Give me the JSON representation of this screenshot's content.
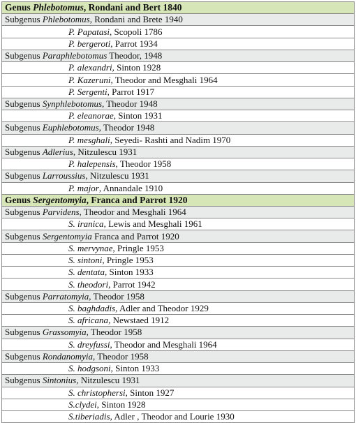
{
  "rows": [
    {
      "type": "genus",
      "prefix": "Genus ",
      "name": "Phlebotomus",
      "author": ", Rondani and Bert 1840"
    },
    {
      "type": "subgenus",
      "prefix": "Subgenus ",
      "name": "Phlebotomus",
      "author": ", Rondani and Brete 1940"
    },
    {
      "type": "species",
      "prefix": "",
      "name": "P. Papatasi",
      "author": ", Scopoli 1786"
    },
    {
      "type": "species",
      "prefix": "",
      "name": "P. bergeroti",
      "author": ", Parrot 1934"
    },
    {
      "type": "subgenus",
      "prefix": "Subgenus ",
      "name": "Paraphlebotomus",
      "author": " Theodor, 1948"
    },
    {
      "type": "species",
      "prefix": "",
      "name": "P. alexandri",
      "author": ", Sinton 1928"
    },
    {
      "type": "species",
      "prefix": "",
      "name": "P. Kazeruni",
      "author": ", Theodor and Mesghali  1964"
    },
    {
      "type": "species",
      "prefix": "",
      "name": "P. Sergenti",
      "author": ", Parrot 1917"
    },
    {
      "type": "subgenus",
      "prefix": "Subgenus ",
      "name": "Synphlebotomus",
      "author": ", Theodor 1948"
    },
    {
      "type": "species",
      "prefix": "",
      "name": "P. eleanorae",
      "author": ", Sinton 1931"
    },
    {
      "type": "subgenus",
      "prefix": "Subgenus ",
      "name": "Euphlebotomus",
      "author": ", Theodor  1948"
    },
    {
      "type": "species",
      "prefix": "",
      "name": "P. mesghali",
      "author": ", Seyedi- Rashti and Nadim 1970"
    },
    {
      "type": "subgenus",
      "prefix": "Subgenus ",
      "name": "Adlerius",
      "author": ", Nitzulescu 1931"
    },
    {
      "type": "species",
      "prefix": "",
      "name": "P. halepensis",
      "author": ", Theodor 1958"
    },
    {
      "type": "subgenus",
      "prefix": "Subgenus ",
      "name": "Larroussius",
      "author": ", Nitzulescu 1931"
    },
    {
      "type": "species",
      "prefix": "",
      "name": "P. major",
      "author": ", Annandale 1910"
    },
    {
      "type": "genus",
      "prefix": "Genus ",
      "name": "Sergentomyia",
      "author": ", Franca and Parrot  1920"
    },
    {
      "type": "subgenus",
      "prefix": "Subgenus ",
      "name": "Parvidens",
      "author": ", Theodor and Mesghali 1964"
    },
    {
      "type": "species",
      "prefix": "",
      "name": "S. iranica",
      "author": ",  Lewis and  Mesghali  1961"
    },
    {
      "type": "subgenus",
      "prefix": "Subgenus ",
      "name": "Sergentomyia",
      "author": "  Franca and  Parrot 1920"
    },
    {
      "type": "species",
      "prefix": "",
      "name": "S. mervynae",
      "author": ", Pringle  1953"
    },
    {
      "type": "species",
      "prefix": "",
      "name": "S. sintoni",
      "author": ", Pringle   1953"
    },
    {
      "type": "species",
      "prefix": "",
      "name": "S. dentata",
      "author": ", Sinton 1933"
    },
    {
      "type": "species",
      "prefix": "",
      "name": "S. theodori",
      "author": ", Parrot 1942"
    },
    {
      "type": "subgenus",
      "prefix": "Subgenus ",
      "name": "Parratomyia,",
      "author": " Theodor 1958"
    },
    {
      "type": "species",
      "prefix": "",
      "name": "S. baghdadis",
      "author": ", Adler  and Theodor 1929"
    },
    {
      "type": "species",
      "prefix": "",
      "name": "S. africana",
      "author": ", Newstaed 1912"
    },
    {
      "type": "subgenus",
      "prefix": "Subgenus ",
      "name": "Grassomyia",
      "author": ", Theodor 1958"
    },
    {
      "type": "species",
      "prefix": "",
      "name": "S. dreyfussi",
      "author": ", Theodor and Mesghali 1964"
    },
    {
      "type": "subgenus",
      "prefix": "Subgenus ",
      "name": "Rondanomyia",
      "author": ", Theodor 1958"
    },
    {
      "type": "species",
      "prefix": "",
      "name": "S. hodgsoni",
      "author": ", Sinton 1933"
    },
    {
      "type": "subgenus",
      "prefix": "Subgenus ",
      "name": "Sintonius",
      "author": ", Nitzulescu 1931"
    },
    {
      "type": "species",
      "prefix": "",
      "name": "S. christophersi",
      "author": ", Sinton 1927"
    },
    {
      "type": "species",
      "prefix": "",
      "name": "S.clydei",
      "author": ", Sinton 1928"
    },
    {
      "type": "species",
      "prefix": "",
      "name": "S.tiberiadis",
      "author": ", Adler , Theodor and Lourie 1930"
    }
  ]
}
